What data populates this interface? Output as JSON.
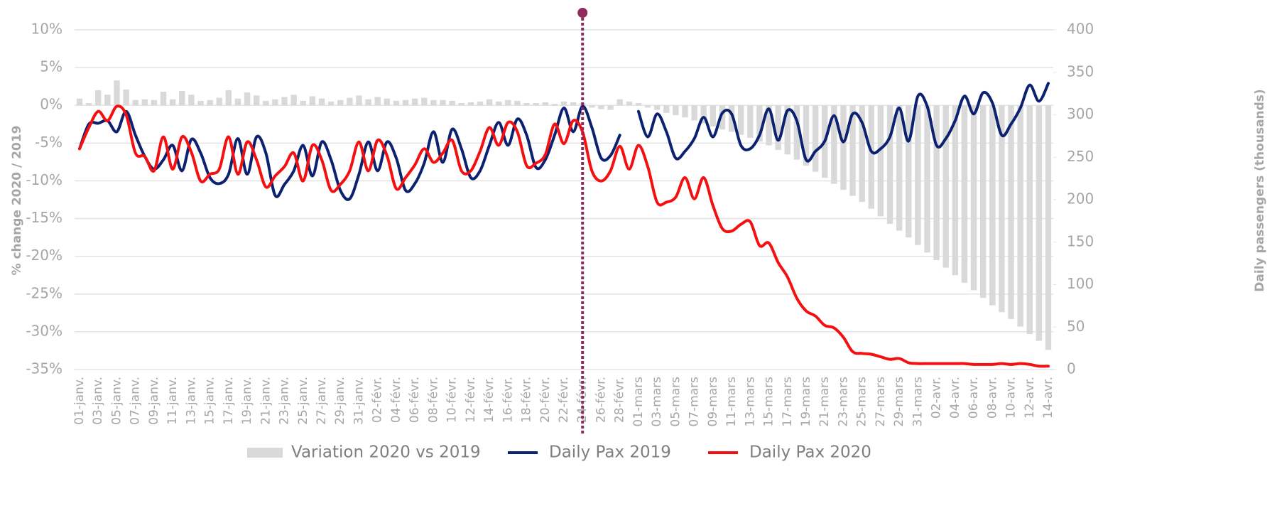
{
  "chart_data": {
    "type": "combo",
    "y_label": "% change 2020 / 2019",
    "y2_label": "Daily passengers (thousands)",
    "categories": [
      "01-janv.",
      null,
      "03-janv.",
      null,
      "05-janv.",
      null,
      "07-janv.",
      null,
      "09-janv.",
      null,
      "11-janv.",
      null,
      "13-janv.",
      null,
      "15-janv.",
      null,
      "17-janv.",
      null,
      "19-janv.",
      null,
      "21-janv.",
      null,
      "23-janv.",
      null,
      "25-janv.",
      null,
      "27-janv.",
      null,
      "29-janv.",
      null,
      "31-janv.",
      null,
      "02-févr.",
      null,
      "04-févr.",
      null,
      "06-févr.",
      null,
      "08-févr.",
      null,
      "10-févr.",
      null,
      "12-févr.",
      null,
      "14-févr.",
      null,
      "16-févr.",
      null,
      "18-févr.",
      null,
      "20-févr.",
      null,
      "22-févr.",
      null,
      "24-févr.",
      null,
      "26-févr.",
      null,
      "28-févr.",
      null,
      "01-mars",
      null,
      "03-mars",
      null,
      "05-mars",
      null,
      "07-mars",
      null,
      "09-mars",
      null,
      "11-mars",
      null,
      "13-mars",
      null,
      "15-mars",
      null,
      "17-mars",
      null,
      "19-mars",
      null,
      "21-mars",
      null,
      "23-mars",
      null,
      "25-mars",
      null,
      "27-mars",
      null,
      "29-mars",
      null,
      "31-mars",
      null,
      "02-avr.",
      null,
      "04-avr.",
      null,
      "06-avr.",
      null,
      "08-avr.",
      null,
      "10-avr.",
      null,
      "12-avr.",
      null,
      "14-avr."
    ],
    "series": [
      {
        "name": "Variation 2020 vs 2019",
        "type": "bar",
        "axis": "y",
        "color": "#d9d9d9",
        "values": [
          0.9,
          0.3,
          2.0,
          1.4,
          3.3,
          2.1,
          0.7,
          0.8,
          0.7,
          1.8,
          0.8,
          1.9,
          1.4,
          0.6,
          0.7,
          1.0,
          2.0,
          0.9,
          1.7,
          1.3,
          0.6,
          0.8,
          1.1,
          1.4,
          0.6,
          1.2,
          0.9,
          0.5,
          0.7,
          1.0,
          1.3,
          0.8,
          1.1,
          0.9,
          0.6,
          0.7,
          0.9,
          1.0,
          0.7,
          0.7,
          0.6,
          0.3,
          0.4,
          0.5,
          0.8,
          0.5,
          0.7,
          0.6,
          0.3,
          0.3,
          0.4,
          0.2,
          0.5,
          0.4,
          0.3,
          -0.3,
          -0.5,
          -0.6,
          0.8,
          0.5,
          0.3,
          -0.3,
          -0.6,
          -1.0,
          -1.3,
          -1.6,
          -2.0,
          -2.4,
          -2.8,
          -3.2,
          -3.5,
          -3.9,
          -4.3,
          -4.8,
          -5.3,
          -5.9,
          -6.5,
          -7.2,
          -8.0,
          -8.8,
          -9.6,
          -10.4,
          -11.2,
          -12.0,
          -12.8,
          -13.7,
          -14.7,
          -15.7,
          -16.6,
          -17.5,
          -18.5,
          -19.5,
          -20.5,
          -21.5,
          -22.5,
          -23.5,
          -24.5,
          -25.5,
          -26.5,
          -27.4,
          -28.3,
          -29.3,
          -30.3,
          -31.2,
          -32.4
        ]
      },
      {
        "name": "Daily Pax 2019",
        "type": "line",
        "axis": "y2",
        "color": "#0c2270",
        "values": [
          260,
          289,
          290,
          293,
          280,
          304,
          276,
          251,
          236,
          247,
          264,
          234,
          271,
          255,
          226,
          219,
          230,
          272,
          230,
          274,
          255,
          205,
          218,
          234,
          264,
          228,
          268,
          247,
          211,
          201,
          230,
          268,
          234,
          268,
          249,
          211,
          219,
          243,
          280,
          244,
          283,
          260,
          226,
          234,
          264,
          291,
          264,
          295,
          276,
          238,
          247,
          276,
          308,
          280,
          310,
          285,
          249,
          252,
          276,
          null,
          304,
          274,
          301,
          280,
          249,
          257,
          272,
          297,
          274,
          302,
          301,
          264,
          260,
          276,
          307,
          270,
          305,
          293,
          247,
          257,
          269,
          299,
          268,
          301,
          291,
          257,
          260,
          274,
          308,
          269,
          322,
          310,
          264,
          272,
          293,
          322,
          301,
          326,
          314,
          276,
          289,
          308,
          335,
          316,
          337
        ]
      },
      {
        "name": "Daily Pax 2020",
        "type": "line",
        "axis": "y2",
        "color": "#f41010",
        "values": [
          260,
          285,
          304,
          293,
          310,
          300,
          255,
          251,
          234,
          274,
          236,
          274,
          256,
          222,
          230,
          236,
          274,
          230,
          268,
          247,
          215,
          228,
          239,
          255,
          222,
          264,
          247,
          211,
          218,
          234,
          268,
          234,
          270,
          252,
          213,
          226,
          241,
          260,
          244,
          255,
          270,
          234,
          234,
          257,
          285,
          264,
          291,
          280,
          240,
          243,
          253,
          289,
          266,
          293,
          280,
          234,
          222,
          234,
          263,
          236,
          264,
          239,
          197,
          197,
          203,
          226,
          201,
          226,
          193,
          166,
          163,
          171,
          174,
          146,
          149,
          126,
          109,
          84,
          69,
          63,
          52,
          49,
          38,
          21,
          19,
          18,
          15,
          12,
          13,
          8,
          7,
          7,
          7,
          7,
          7,
          7,
          6,
          6,
          6,
          7,
          6,
          7,
          6,
          4,
          4
        ]
      }
    ],
    "ylim": [
      -35,
      10
    ],
    "yticks": [
      {
        "value": -35,
        "label": "-35%"
      },
      {
        "value": -30,
        "label": "-30%"
      },
      {
        "value": -25,
        "label": "-25%"
      },
      {
        "value": -20,
        "label": "-20%"
      },
      {
        "value": -15,
        "label": "-15%"
      },
      {
        "value": -10,
        "label": "-10%"
      },
      {
        "value": -5,
        "label": "-5%"
      },
      {
        "value": 0,
        "label": "0%"
      },
      {
        "value": 5,
        "label": "5%"
      },
      {
        "value": 10,
        "label": "10%"
      }
    ],
    "y2lim": [
      0,
      400
    ],
    "y2ticks": [
      0,
      50,
      100,
      150,
      200,
      250,
      300,
      350,
      400
    ],
    "grid": true,
    "legend": "bottom"
  }
}
